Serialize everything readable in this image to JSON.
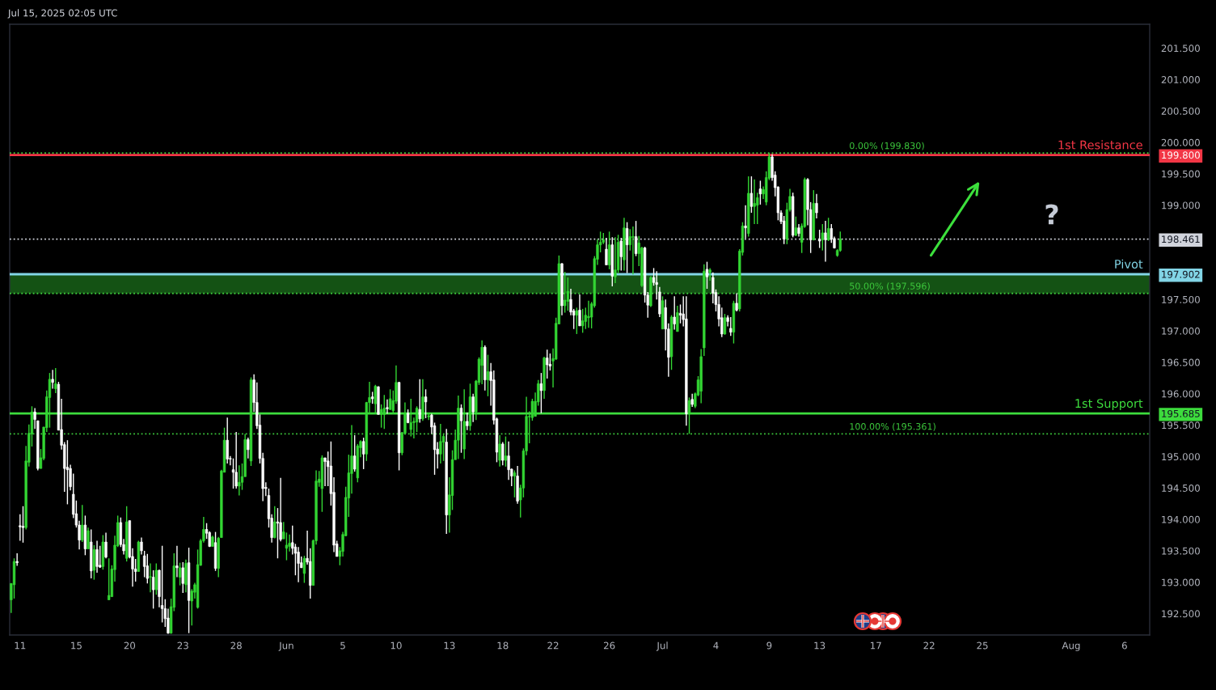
{
  "chart_data": {
    "type": "candlestick",
    "title": "Jul 15, 2025 02:05 UTC",
    "categories": [
      null,
      null,
      null,
      "11",
      null,
      null,
      null,
      null,
      null,
      null,
      null,
      null,
      null,
      null,
      null,
      null,
      null,
      null,
      null,
      null,
      null,
      null,
      "15",
      null,
      null,
      null,
      null,
      null,
      null,
      null,
      null,
      null,
      null,
      null,
      null,
      null,
      null,
      null,
      null,
      null,
      "20",
      null,
      null,
      null,
      null,
      null,
      null,
      null,
      null,
      null,
      null,
      null,
      null,
      null,
      null,
      null,
      null,
      null,
      "23",
      null,
      null,
      null,
      null,
      null,
      null,
      null,
      null,
      null,
      null,
      null,
      null,
      null,
      null,
      null,
      null,
      null,
      "28",
      null,
      null,
      null,
      null,
      null,
      null,
      null,
      null,
      null,
      null,
      null,
      null,
      null,
      null,
      null,
      null,
      "Jun",
      null,
      null,
      null,
      null,
      null,
      null,
      null,
      null,
      null,
      null,
      null,
      null,
      null,
      null,
      null,
      null,
      null,
      null,
      "5",
      null,
      null,
      null,
      null,
      null,
      null,
      null,
      null,
      null,
      null,
      null,
      null,
      null,
      null,
      null,
      null,
      null,
      "10",
      null,
      null,
      null,
      null,
      null,
      null,
      null,
      null,
      null,
      null,
      null,
      null,
      null,
      null,
      null,
      null,
      null,
      "13",
      null,
      null,
      null,
      null,
      null,
      null,
      null,
      null,
      null,
      null,
      null,
      null,
      null,
      null,
      null,
      null,
      null,
      "18",
      null,
      null,
      null,
      null,
      null,
      null,
      null,
      null,
      null,
      null,
      null,
      null,
      null,
      null,
      null,
      null,
      "22",
      null,
      null,
      null,
      null,
      null,
      null,
      null,
      null,
      null,
      null,
      null,
      null,
      null,
      null,
      null,
      null,
      null,
      null,
      "26",
      null,
      null,
      null,
      null,
      null,
      null,
      null,
      null,
      null,
      null,
      null,
      null,
      null,
      null,
      null,
      null,
      null,
      "Jul",
      null,
      null,
      null,
      null,
      null,
      null,
      null,
      null,
      null,
      null,
      null,
      null,
      null,
      null,
      null,
      null,
      null,
      "4",
      null,
      null,
      null,
      null,
      null,
      null,
      null,
      null,
      null,
      null,
      null,
      null,
      null,
      null,
      null,
      null,
      null,
      "9",
      null,
      null,
      null,
      null,
      null,
      null,
      null,
      null,
      null,
      null,
      null,
      null,
      null,
      null,
      null,
      null,
      "13",
      null,
      null,
      null,
      null,
      null,
      null,
      null,
      null,
      null,
      null,
      null,
      null,
      null,
      null,
      null,
      null,
      null,
      null,
      "17",
      null,
      null,
      null,
      null,
      null,
      null,
      null,
      null,
      null,
      null,
      null,
      null,
      null,
      null,
      null,
      null,
      null,
      "22",
      null,
      null,
      null,
      null,
      null,
      null,
      null,
      null,
      null,
      null,
      null,
      null,
      null,
      null,
      null,
      null,
      null,
      "25",
      null,
      null,
      null,
      null,
      null,
      null,
      null,
      null,
      null,
      null,
      null,
      null,
      null,
      null,
      null,
      null,
      null,
      null,
      null,
      null,
      null,
      null,
      null,
      null,
      null,
      null,
      null,
      null,
      null,
      "Aug",
      null,
      null,
      null,
      null,
      null,
      null,
      null,
      null,
      null,
      null,
      null,
      null,
      null,
      null,
      null,
      null,
      null,
      "6",
      null,
      null,
      null,
      null,
      null,
      null,
      null,
      null
    ],
    "ohlc": [
      [
        192.72,
        192.98,
        192.51,
        192.98
      ],
      [
        192.96,
        193.38,
        192.74,
        193.33
      ],
      [
        193.33,
        193.46,
        193.26,
        193.31
      ],
      [
        193.9,
        194.08,
        193.66,
        193.88
      ],
      [
        193.89,
        194.21,
        193.63,
        193.87
      ],
      [
        193.87,
        195.17,
        193.84,
        194.93
      ],
      [
        194.91,
        195.51,
        194.84,
        195.37
      ],
      [
        195.36,
        195.8,
        195.16,
        195.71
      ],
      [
        195.71,
        195.77,
        195.44,
        195.59
      ],
      [
        195.57,
        195.57,
        194.78,
        194.81
      ],
      [
        194.81,
        195.12,
        194.81,
        194.98
      ],
      [
        194.97,
        195.47,
        194.94,
        195.47
      ],
      [
        195.46,
        196.05,
        195.39,
        195.95
      ],
      [
        195.94,
        196.33,
        195.46,
        196.23
      ],
      [
        196.23,
        196.38,
        196.08,
        196.18
      ],
      [
        196.08,
        196.41,
        196.01,
        196.16
      ],
      [
        196.15,
        196.19,
        195.42,
        195.42
      ],
      [
        195.43,
        195.92,
        195.11,
        195.18
      ],
      [
        195.19,
        195.23,
        194.44,
        194.81
      ],
      [
        194.83,
        195.26,
        194.24,
        194.79
      ],
      [
        194.81,
        194.87,
        194.46,
        194.52
      ],
      [
        194.4,
        194.73,
        194.02,
        194.08
      ],
      [
        194.09,
        194.3,
        193.87,
        193.91
      ],
      [
        193.91,
        193.98,
        193.52,
        193.67
      ],
      [
        193.67,
        194.23,
        193.64,
        193.91
      ],
      [
        193.91,
        194.06,
        193.43,
        193.53
      ],
      [
        193.53,
        193.87,
        193.53,
        193.82
      ],
      [
        193.64,
        193.84,
        193.06,
        193.18
      ],
      [
        193.19,
        193.59,
        193.04,
        193.52
      ],
      [
        193.52,
        193.66,
        193.15,
        193.25
      ],
      [
        193.27,
        193.58,
        193.23,
        193.24
      ],
      [
        193.25,
        193.75,
        193.2,
        193.64
      ],
      [
        193.64,
        193.79,
        193.38,
        193.4
      ],
      [
        192.72,
        193.38,
        192.72,
        192.79
      ],
      [
        192.77,
        193.27,
        192.77,
        193.21
      ],
      [
        193.2,
        193.74,
        193.01,
        193.59
      ],
      [
        193.58,
        194.06,
        193.56,
        193.95
      ],
      [
        193.95,
        194.03,
        193.56,
        193.6
      ],
      [
        193.6,
        193.69,
        193.44,
        193.5
      ],
      [
        193.38,
        194.21,
        193.33,
        193.96
      ],
      [
        193.98,
        193.98,
        193.38,
        193.4
      ],
      [
        193.41,
        193.54,
        192.93,
        193.21
      ],
      [
        193.21,
        193.37,
        193.01,
        193.17
      ],
      [
        193.17,
        193.66,
        193.17,
        193.64
      ],
      [
        193.64,
        193.71,
        193.44,
        193.5
      ],
      [
        193.42,
        193.5,
        193.08,
        193.25
      ],
      [
        193.26,
        193.45,
        192.98,
        193.06
      ],
      [
        193.08,
        193.3,
        192.84,
        193.09
      ],
      [
        193.08,
        193.19,
        192.58,
        192.88
      ],
      [
        192.88,
        193.3,
        192.8,
        193.19
      ],
      [
        193.19,
        193.2,
        192.6,
        192.77
      ],
      [
        192.63,
        193.58,
        192.36,
        192.58
      ],
      [
        192.58,
        192.73,
        192.29,
        192.42
      ],
      [
        192.43,
        192.58,
        192.18,
        192.19
      ],
      [
        192.19,
        192.74,
        192.18,
        192.61
      ],
      [
        192.6,
        193.46,
        192.54,
        193.26
      ],
      [
        193.26,
        193.58,
        193.08,
        193.23
      ],
      [
        193.08,
        193.31,
        192.95,
        193.23
      ],
      [
        193.23,
        193.32,
        192.83,
        192.98
      ],
      [
        192.96,
        193.36,
        192.84,
        193.3
      ],
      [
        193.31,
        193.55,
        192.19,
        192.71
      ],
      [
        192.7,
        192.89,
        192.31,
        192.86
      ],
      [
        192.84,
        192.99,
        192.74,
        192.96
      ],
      [
        192.6,
        193.52,
        192.58,
        193.28
      ],
      [
        193.27,
        193.69,
        193.26,
        193.66
      ],
      [
        193.66,
        194.04,
        193.63,
        193.84
      ],
      [
        193.84,
        193.94,
        193.69,
        193.78
      ],
      [
        193.79,
        193.81,
        193.56,
        193.57
      ],
      [
        193.57,
        193.74,
        193.57,
        193.72
      ],
      [
        193.63,
        193.8,
        193.18,
        193.22
      ],
      [
        193.22,
        193.72,
        193.08,
        193.7
      ],
      [
        193.71,
        194.79,
        193.71,
        194.77
      ],
      [
        194.75,
        195.46,
        194.75,
        195.26
      ],
      [
        195.26,
        195.62,
        194.89,
        194.96
      ],
      [
        194.97,
        195.01,
        194.86,
        194.96
      ],
      [
        194.79,
        194.97,
        194.49,
        194.75
      ],
      [
        194.75,
        195.39,
        194.49,
        194.53
      ],
      [
        194.53,
        194.86,
        194.38,
        194.59
      ],
      [
        194.59,
        194.89,
        194.47,
        194.68
      ],
      [
        194.68,
        195.36,
        194.68,
        195.27
      ],
      [
        195.27,
        195.3,
        194.97,
        195.11
      ],
      [
        194.93,
        196.26,
        194.85,
        196.22
      ],
      [
        196.22,
        196.31,
        195.71,
        195.86
      ],
      [
        195.86,
        196.18,
        195.44,
        195.49
      ],
      [
        195.5,
        195.67,
        194.89,
        194.97
      ],
      [
        194.97,
        195.06,
        194.29,
        194.49
      ],
      [
        194.51,
        194.59,
        194.37,
        194.49
      ],
      [
        194.38,
        194.49,
        193.87,
        194.01
      ],
      [
        194.02,
        194.08,
        193.63,
        193.71
      ],
      [
        193.71,
        194.21,
        193.7,
        193.96
      ],
      [
        193.96,
        194.18,
        193.38,
        193.94
      ],
      [
        193.95,
        194.66,
        193.65,
        193.68
      ],
      [
        193.69,
        193.96,
        193.69,
        193.8
      ],
      [
        193.54,
        193.79,
        193.35,
        193.59
      ],
      [
        193.57,
        193.76,
        193.49,
        193.62
      ],
      [
        193.63,
        193.9,
        193.44,
        193.54
      ],
      [
        193.56,
        193.61,
        193.11,
        193.46
      ],
      [
        193.48,
        193.56,
        193.0,
        193.3
      ],
      [
        193.31,
        193.41,
        193.23,
        193.23
      ],
      [
        193.14,
        193.42,
        192.99,
        193.38
      ],
      [
        193.38,
        193.82,
        193.28,
        193.32
      ],
      [
        193.33,
        193.54,
        192.74,
        192.95
      ],
      [
        192.95,
        193.68,
        192.95,
        193.66
      ],
      [
        193.66,
        194.78,
        193.6,
        194.61
      ],
      [
        194.59,
        194.77,
        194.52,
        194.64
      ],
      [
        194.49,
        195.02,
        194.12,
        194.98
      ],
      [
        194.98,
        194.98,
        194.53,
        194.92
      ],
      [
        194.93,
        195.08,
        194.53,
        194.84
      ],
      [
        194.85,
        195.24,
        194.22,
        194.41
      ],
      [
        194.43,
        194.67,
        193.48,
        193.59
      ],
      [
        193.61,
        193.66,
        193.41,
        193.41
      ],
      [
        193.41,
        193.56,
        193.27,
        193.5
      ],
      [
        193.49,
        193.8,
        193.41,
        193.76
      ],
      [
        193.74,
        194.52,
        193.73,
        194.35
      ],
      [
        194.34,
        195.03,
        194.04,
        194.74
      ],
      [
        194.73,
        195.5,
        194.41,
        195.01
      ],
      [
        195.01,
        195.34,
        194.76,
        194.8
      ],
      [
        194.66,
        195.2,
        194.59,
        195.17
      ],
      [
        195.14,
        195.26,
        194.99,
        195.24
      ],
      [
        195.24,
        195.3,
        194.8,
        195.04
      ],
      [
        195.04,
        195.87,
        194.93,
        195.86
      ],
      [
        195.86,
        196.19,
        195.68,
        195.94
      ],
      [
        195.95,
        196.03,
        195.84,
        195.92
      ],
      [
        195.84,
        196.14,
        195.69,
        196.12
      ],
      [
        196.11,
        196.12,
        195.67,
        195.67
      ],
      [
        195.67,
        195.83,
        195.46,
        195.75
      ],
      [
        195.67,
        195.98,
        195.44,
        195.77
      ],
      [
        195.78,
        195.91,
        195.68,
        195.76
      ],
      [
        195.75,
        196.07,
        195.74,
        195.92
      ],
      [
        195.73,
        196.05,
        195.68,
        195.89
      ],
      [
        195.88,
        196.45,
        195.84,
        196.18
      ],
      [
        196.18,
        196.19,
        194.78,
        195.06
      ],
      [
        195.06,
        195.39,
        195.02,
        195.38
      ],
      [
        195.37,
        195.86,
        195.35,
        195.69
      ],
      [
        195.69,
        195.75,
        195.53,
        195.54
      ],
      [
        195.43,
        195.92,
        195.32,
        195.54
      ],
      [
        195.54,
        195.62,
        195.29,
        195.56
      ],
      [
        195.55,
        195.8,
        195.39,
        195.77
      ],
      [
        195.75,
        196.23,
        195.54,
        195.6
      ],
      [
        195.6,
        196.23,
        195.57,
        195.95
      ],
      [
        195.95,
        196.07,
        195.61,
        195.87
      ],
      [
        195.63,
        195.7,
        195.58,
        195.65
      ],
      [
        195.66,
        195.68,
        195.36,
        195.47
      ],
      [
        195.49,
        195.54,
        194.71,
        195.11
      ],
      [
        195.12,
        195.23,
        194.81,
        195.04
      ],
      [
        195.04,
        195.52,
        194.89,
        195.24
      ],
      [
        195.23,
        195.36,
        194.93,
        195.32
      ],
      [
        195.23,
        195.44,
        193.77,
        194.07
      ],
      [
        194.07,
        194.67,
        193.79,
        194.39
      ],
      [
        194.38,
        195.1,
        194.15,
        194.95
      ],
      [
        194.95,
        195.43,
        194.95,
        195.26
      ],
      [
        195.26,
        195.97,
        194.96,
        195.77
      ],
      [
        195.77,
        195.83,
        195.06,
        195.57
      ],
      [
        195.12,
        196.07,
        194.96,
        195.56
      ],
      [
        195.56,
        195.7,
        195.42,
        195.49
      ],
      [
        195.49,
        196.16,
        195.41,
        195.95
      ],
      [
        195.95,
        196.0,
        195.55,
        195.71
      ],
      [
        195.71,
        196.22,
        195.58,
        196.2
      ],
      [
        196.18,
        196.58,
        196.14,
        196.55
      ],
      [
        196.45,
        196.85,
        196.15,
        196.74
      ],
      [
        196.74,
        196.77,
        196.05,
        196.22
      ],
      [
        196.22,
        196.62,
        195.96,
        196.35
      ],
      [
        196.35,
        196.49,
        195.81,
        196.21
      ],
      [
        196.22,
        196.37,
        195.51,
        195.58
      ],
      [
        195.6,
        195.62,
        194.91,
        195.07
      ],
      [
        194.94,
        195.34,
        194.84,
        195.2
      ],
      [
        195.2,
        195.23,
        194.86,
        194.94
      ],
      [
        194.94,
        195.32,
        194.84,
        195.01
      ],
      [
        195.01,
        195.24,
        194.63,
        194.79
      ],
      [
        194.8,
        194.81,
        194.53,
        194.69
      ],
      [
        194.69,
        194.78,
        194.35,
        194.74
      ],
      [
        194.69,
        194.85,
        194.25,
        194.29
      ],
      [
        194.31,
        194.55,
        194.03,
        194.5
      ],
      [
        194.5,
        195.13,
        194.35,
        195.09
      ],
      [
        195.09,
        195.95,
        195.02,
        195.64
      ],
      [
        195.63,
        195.72,
        195.21,
        195.64
      ],
      [
        195.62,
        195.92,
        195.57,
        195.88
      ],
      [
        195.64,
        196.02,
        195.64,
        195.88
      ],
      [
        195.87,
        196.22,
        195.81,
        196.16
      ],
      [
        196.16,
        196.33,
        195.69,
        196.05
      ],
      [
        196.05,
        196.59,
        195.92,
        196.57
      ],
      [
        196.57,
        196.7,
        196.24,
        196.46
      ],
      [
        196.47,
        196.64,
        196.37,
        196.44
      ],
      [
        196.52,
        196.72,
        196.1,
        196.56
      ],
      [
        196.55,
        197.21,
        196.54,
        197.12
      ],
      [
        197.11,
        198.2,
        197.11,
        198.07
      ],
      [
        198.07,
        198.08,
        197.25,
        197.4
      ],
      [
        197.4,
        197.94,
        197.29,
        197.49
      ],
      [
        197.47,
        197.85,
        197.32,
        197.63
      ],
      [
        197.5,
        197.67,
        197.25,
        197.3
      ],
      [
        197.32,
        197.35,
        197.03,
        197.25
      ],
      [
        197.25,
        197.37,
        196.95,
        197.32
      ],
      [
        197.33,
        197.58,
        197.08,
        197.08
      ],
      [
        197.08,
        197.35,
        196.97,
        197.16
      ],
      [
        197.15,
        197.37,
        197.03,
        197.25
      ],
      [
        197.21,
        197.48,
        197.05,
        197.23
      ],
      [
        197.22,
        197.46,
        197.04,
        197.43
      ],
      [
        197.4,
        198.19,
        197.37,
        198.15
      ],
      [
        198.14,
        198.46,
        198.05,
        198.37
      ],
      [
        198.37,
        198.58,
        198.25,
        198.41
      ],
      [
        198.41,
        198.56,
        198.38,
        198.45
      ],
      [
        198.3,
        198.48,
        198.05,
        198.05
      ],
      [
        198.05,
        198.58,
        197.98,
        198.37
      ],
      [
        198.37,
        198.49,
        197.71,
        197.87
      ],
      [
        197.86,
        198.49,
        197.76,
        197.97
      ],
      [
        197.97,
        198.53,
        197.92,
        198.41
      ],
      [
        198.43,
        198.48,
        197.96,
        198.18
      ],
      [
        198.13,
        198.8,
        197.96,
        198.64
      ],
      [
        198.63,
        198.73,
        197.92,
        198.37
      ],
      [
        198.37,
        198.62,
        198.28,
        198.5
      ],
      [
        198.49,
        198.66,
        197.9,
        198.5
      ],
      [
        198.5,
        198.75,
        198.19,
        198.23
      ],
      [
        198.23,
        198.51,
        198.03,
        198.4
      ],
      [
        197.72,
        198.34,
        197.7,
        198.32
      ],
      [
        198.32,
        198.34,
        197.45,
        197.57
      ],
      [
        197.57,
        197.62,
        197.21,
        197.41
      ],
      [
        197.4,
        197.87,
        197.38,
        197.85
      ],
      [
        197.85,
        198.0,
        197.72,
        197.77
      ],
      [
        197.77,
        197.95,
        197.5,
        197.74
      ],
      [
        197.62,
        197.7,
        197.22,
        197.27
      ],
      [
        197.03,
        197.55,
        197.03,
        197.48
      ],
      [
        197.37,
        197.5,
        196.69,
        197.03
      ],
      [
        197.03,
        197.12,
        196.27,
        196.58
      ],
      [
        196.59,
        197.25,
        196.38,
        197.22
      ],
      [
        197.22,
        197.55,
        197.02,
        197.11
      ],
      [
        196.99,
        197.4,
        196.99,
        197.29
      ],
      [
        197.28,
        197.42,
        197.12,
        197.25
      ],
      [
        197.27,
        197.55,
        197.07,
        197.18
      ],
      [
        197.19,
        197.55,
        195.49,
        195.68
      ],
      [
        195.69,
        195.94,
        195.361,
        195.89
      ],
      [
        195.91,
        196.0,
        195.79,
        195.83
      ],
      [
        195.8,
        196.02,
        195.77,
        196.0
      ],
      [
        195.98,
        196.28,
        195.96,
        196.22
      ],
      [
        196.04,
        196.71,
        195.85,
        196.59
      ],
      [
        196.73,
        198.06,
        196.6,
        197.95
      ],
      [
        197.98,
        198.1,
        197.67,
        197.86
      ],
      [
        197.93,
        198.0,
        197.8,
        197.97
      ],
      [
        197.85,
        197.93,
        197.44,
        197.6
      ],
      [
        197.61,
        197.66,
        197.31,
        197.42
      ],
      [
        197.42,
        197.55,
        197.07,
        197.19
      ],
      [
        197.21,
        197.37,
        196.9,
        196.95
      ],
      [
        196.95,
        197.27,
        196.94,
        197.21
      ],
      [
        197.21,
        197.25,
        197.07,
        197.15
      ],
      [
        197.04,
        197.22,
        196.92,
        196.98
      ],
      [
        196.98,
        197.48,
        196.8,
        197.44
      ],
      [
        197.44,
        197.6,
        197.31,
        197.33
      ],
      [
        197.35,
        198.3,
        197.31,
        198.27
      ],
      [
        198.25,
        198.73,
        198.2,
        198.67
      ],
      [
        198.67,
        199.0,
        198.47,
        198.64
      ],
      [
        198.55,
        199.46,
        198.5,
        199.19
      ],
      [
        199.19,
        199.46,
        198.88,
        198.98
      ],
      [
        198.98,
        199.41,
        198.7,
        199.03
      ],
      [
        199.0,
        199.2,
        198.7,
        199.12
      ],
      [
        199.26,
        199.39,
        199.01,
        199.18
      ],
      [
        199.18,
        199.3,
        199.1,
        199.25
      ],
      [
        199.05,
        199.54,
        199.0,
        199.44
      ],
      [
        199.43,
        199.83,
        199.4,
        199.77
      ],
      [
        199.77,
        199.81,
        199.39,
        199.44
      ],
      [
        199.48,
        199.54,
        199.14,
        199.28
      ],
      [
        199.29,
        199.3,
        198.76,
        198.88
      ],
      [
        198.88,
        198.92,
        198.7,
        198.74
      ],
      [
        198.75,
        198.83,
        198.38,
        198.46
      ],
      [
        198.46,
        199.04,
        198.38,
        198.93
      ],
      [
        198.93,
        199.26,
        198.9,
        199.14
      ],
      [
        199.14,
        199.2,
        198.49,
        198.52
      ],
      [
        198.52,
        198.82,
        198.51,
        198.64
      ],
      [
        198.64,
        198.7,
        198.5,
        198.55
      ],
      [
        198.41,
        198.71,
        198.24,
        198.67
      ],
      [
        198.66,
        199.44,
        198.64,
        199.41
      ],
      [
        199.41,
        199.43,
        198.68,
        198.93
      ],
      [
        198.93,
        199.05,
        198.24,
        198.45
      ],
      [
        198.45,
        199.24,
        198.44,
        199.03
      ],
      [
        199.03,
        199.18,
        198.79,
        198.88
      ],
      [
        198.46,
        198.61,
        198.32,
        198.43
      ],
      [
        198.45,
        198.7,
        198.28,
        198.56
      ],
      [
        198.56,
        198.75,
        198.1,
        198.45
      ],
      [
        198.45,
        198.8,
        198.43,
        198.63
      ],
      [
        198.63,
        198.7,
        198.4,
        198.46
      ],
      [
        198.47,
        198.5,
        198.31,
        198.32
      ],
      [
        198.2,
        198.3,
        198.18,
        198.28
      ],
      [
        198.28,
        198.58,
        198.26,
        198.461
      ],
      null,
      null,
      null,
      null,
      null,
      null,
      null,
      null,
      null,
      null,
      null,
      null,
      null,
      null,
      null,
      null,
      null,
      null,
      null,
      null,
      null,
      null,
      null,
      null,
      null,
      null,
      null,
      null,
      null,
      null,
      null,
      null,
      null,
      null,
      null,
      null,
      null,
      null,
      null,
      null,
      null,
      null,
      null,
      null,
      null,
      null,
      null,
      null,
      null,
      null,
      null,
      null,
      null,
      null,
      null,
      null,
      null,
      null,
      null,
      null,
      null,
      null,
      null,
      null,
      null,
      null,
      null,
      null,
      null,
      null,
      null,
      null,
      null,
      null,
      null,
      null,
      null,
      null,
      null,
      null,
      null,
      null,
      null,
      null,
      null,
      null,
      null,
      null,
      null,
      null,
      null,
      null,
      null,
      null,
      null,
      null,
      null,
      null,
      null,
      null,
      null,
      null,
      null,
      null
    ],
    "colors": [
      "#33d633",
      "#33d633",
      "#ffffff",
      "#ffffff",
      "#ffffff",
      "#33d633",
      "#33d633",
      "#33d633",
      "#ffffff",
      "#ffffff",
      "#33d633",
      "#33d633",
      "#33d633",
      "#33d633",
      "#ffffff",
      "#33d633",
      "#ffffff",
      "#ffffff",
      "#ffffff",
      "#ffffff",
      "#ffffff",
      "#ffffff",
      "#ffffff",
      "#ffffff",
      "#33d633",
      "#ffffff",
      "#33d633",
      "#ffffff",
      "#33d633",
      "#ffffff",
      "#ffffff",
      "#33d633",
      "#ffffff",
      "#33d633",
      "#33d633",
      "#33d633",
      "#33d633",
      "#ffffff",
      "#ffffff",
      "#33d633",
      "#ffffff",
      "#ffffff",
      "#ffffff",
      "#33d633",
      "#ffffff",
      "#ffffff",
      "#ffffff",
      "#33d633",
      "#ffffff",
      "#33d633",
      "#ffffff",
      "#ffffff",
      "#ffffff",
      "#ffffff",
      "#33d633",
      "#33d633",
      "#ffffff",
      "#33d633",
      "#ffffff",
      "#33d633",
      "#ffffff",
      "#33d633",
      "#33d633",
      "#33d633",
      "#33d633",
      "#33d633",
      "#ffffff",
      "#ffffff",
      "#33d633",
      "#ffffff",
      "#33d633",
      "#33d633",
      "#33d633",
      "#ffffff",
      "#ffffff",
      "#ffffff",
      "#ffffff",
      "#33d633",
      "#33d633",
      "#33d633",
      "#ffffff",
      "#33d633",
      "#ffffff",
      "#ffffff",
      "#ffffff",
      "#ffffff",
      "#ffffff",
      "#ffffff",
      "#ffffff",
      "#33d633",
      "#ffffff",
      "#ffffff",
      "#33d633",
      "#33d633",
      "#33d633",
      "#ffffff",
      "#ffffff",
      "#ffffff",
      "#ffffff",
      "#33d633",
      "#ffffff",
      "#ffffff",
      "#33d633",
      "#33d633",
      "#33d633",
      "#33d633",
      "#ffffff",
      "#ffffff",
      "#ffffff",
      "#ffffff",
      "#ffffff",
      "#33d633",
      "#33d633",
      "#33d633",
      "#33d633",
      "#33d633",
      "#ffffff",
      "#33d633",
      "#33d633",
      "#ffffff",
      "#33d633",
      "#33d633",
      "#ffffff",
      "#33d633",
      "#ffffff",
      "#33d633",
      "#33d633",
      "#ffffff",
      "#33d633",
      "#33d633",
      "#33d633",
      "#ffffff",
      "#33d633",
      "#33d633",
      "#ffffff",
      "#33d633",
      "#33d633",
      "#33d633",
      "#ffffff",
      "#33d633",
      "#ffffff",
      "#33d633",
      "#ffffff",
      "#ffffff",
      "#ffffff",
      "#33d633",
      "#33d633",
      "#ffffff",
      "#33d633",
      "#33d633",
      "#33d633",
      "#33d633",
      "#ffffff",
      "#33d633",
      "#ffffff",
      "#33d633",
      "#ffffff",
      "#33d633",
      "#33d633",
      "#33d633",
      "#ffffff",
      "#33d633",
      "#ffffff",
      "#ffffff",
      "#ffffff",
      "#33d633",
      "#ffffff",
      "#33d633",
      "#ffffff",
      "#ffffff",
      "#33d633",
      "#ffffff",
      "#33d633",
      "#33d633",
      "#33d633",
      "#33d633",
      "#33d633",
      "#33d633",
      "#33d633",
      "#ffffff",
      "#33d633",
      "#ffffff",
      "#ffffff",
      "#33d633",
      "#33d633",
      "#33d633",
      "#ffffff",
      "#33d633",
      "#33d633",
      "#ffffff",
      "#ffffff",
      "#33d633",
      "#ffffff",
      "#33d633",
      "#33d633",
      "#33d633",
      "#33d633",
      "#33d633",
      "#33d633",
      "#33d633",
      "#33d633",
      "#ffffff",
      "#33d633",
      "#ffffff",
      "#33d633",
      "#33d633",
      "#ffffff",
      "#33d633",
      "#ffffff",
      "#33d633",
      "#33d633",
      "#ffffff",
      "#33d633",
      "#33d633",
      "#ffffff",
      "#ffffff",
      "#33d633",
      "#ffffff",
      "#ffffff",
      "#ffffff",
      "#33d633",
      "#ffffff",
      "#ffffff",
      "#33d633",
      "#ffffff",
      "#33d633",
      "#ffffff",
      "#ffffff",
      "#ffffff",
      "#33d633",
      "#ffffff",
      "#33d633",
      "#33d633",
      "#33d633",
      "#33d633",
      "#ffffff",
      "#33d633",
      "#ffffff",
      "#ffffff",
      "#ffffff",
      "#ffffff",
      "#33d633",
      "#ffffff",
      "#ffffff",
      "#33d633",
      "#ffffff",
      "#33d633",
      "#33d633",
      "#ffffff",
      "#33d633",
      "#ffffff",
      "#33d633",
      "#33d633",
      "#ffffff",
      "#33d633",
      "#33d633",
      "#33d633",
      "#ffffff",
      "#ffffff",
      "#ffffff",
      "#ffffff",
      "#ffffff",
      "#33d633",
      "#33d633",
      "#ffffff",
      "#33d633",
      "#ffffff",
      "#33d633",
      "#33d633",
      "#ffffff",
      "#ffffff",
      "#33d633",
      "#ffffff",
      "#ffffff",
      "#33d633",
      "#ffffff",
      "#33d633",
      "#ffffff",
      "#ffffff",
      "#33d633",
      "#33d633",
      null,
      null,
      null,
      null,
      null,
      null,
      null,
      null,
      null,
      null,
      null,
      null,
      null,
      null,
      null,
      null,
      null,
      null,
      null,
      null,
      null,
      null,
      null,
      null,
      null,
      null,
      null,
      null,
      null,
      null,
      null,
      null,
      null,
      null,
      null,
      null,
      null,
      null,
      null,
      null,
      null,
      null,
      null,
      null,
      null,
      null,
      null,
      null,
      null,
      null,
      null,
      null,
      null,
      null,
      null,
      null,
      null,
      null,
      null,
      null,
      null,
      null,
      null,
      null,
      null,
      null,
      null,
      null,
      null,
      null,
      null,
      null,
      null,
      null,
      null,
      null,
      null,
      null,
      null,
      null,
      null,
      null,
      null,
      null,
      null,
      null,
      null,
      null,
      null,
      null,
      null,
      null,
      null,
      null,
      null,
      null,
      null,
      null,
      null,
      null,
      null,
      null,
      null,
      null
    ],
    "ylim": [
      192.16,
      201.88
    ],
    "yticks": [
      {
        "value": 192.5,
        "label": "192.500"
      },
      {
        "value": 193,
        "label": "193.000"
      },
      {
        "value": 193.5,
        "label": "193.500"
      },
      {
        "value": 194,
        "label": "194.000"
      },
      {
        "value": 194.5,
        "label": "194.500"
      },
      {
        "value": 195,
        "label": "195.000"
      },
      {
        "value": 195.5,
        "label": "195.500"
      },
      {
        "value": 195.685,
        "label": "195.685"
      },
      {
        "value": 196,
        "label": "196.000"
      },
      {
        "value": 196.5,
        "label": "196.500"
      },
      {
        "value": 197,
        "label": "197.000"
      },
      {
        "value": 197.5,
        "label": "197.500"
      },
      {
        "value": 197.902,
        "label": "197.902"
      },
      {
        "value": 198.461,
        "label": "198.461"
      },
      {
        "value": 199,
        "label": "199.000"
      },
      {
        "value": 199.5,
        "label": "199.500"
      },
      {
        "value": 199.8,
        "label": "199.800"
      },
      {
        "value": 200,
        "label": "200.000"
      },
      {
        "value": 200.5,
        "label": "200.500"
      },
      {
        "value": 201,
        "label": "201.000"
      },
      {
        "value": 201.5,
        "label": "201.500"
      }
    ],
    "ref_lines": [
      {
        "axis": "y",
        "value": 199.83,
        "label": "0.00% (199.830)",
        "color": "#3cc83c",
        "line_style": "dotted"
      },
      {
        "axis": "y",
        "value": 197.596,
        "label": "50.00% (197.596)",
        "color": "#3cc83c",
        "line_style": "dotted"
      },
      {
        "axis": "y",
        "value": 195.361,
        "label": "100.00% (195.361)",
        "color": "#3cc83c",
        "line_style": "dotted"
      },
      {
        "axis": "y",
        "value": 198.461,
        "label": null,
        "color": "#d1d4dc",
        "line_style": "dotted"
      },
      {
        "axis": "y",
        "value": 199.8,
        "label": "1st Resistance",
        "color": "#f23645",
        "line_style": "solid"
      },
      {
        "axis": "y",
        "value": 197.902,
        "label": "Pivot",
        "color": "#82d5e6",
        "line_style": "solid"
      },
      {
        "axis": "y",
        "value": 195.685,
        "label": "1st Support",
        "color": "#3ddc3d",
        "line_style": "solid"
      }
    ],
    "bands": [
      {
        "axis": "y",
        "from": 197.596,
        "to": 197.902,
        "label": null,
        "color": "#145214"
      }
    ],
    "annotations": [
      "?"
    ]
  }
}
